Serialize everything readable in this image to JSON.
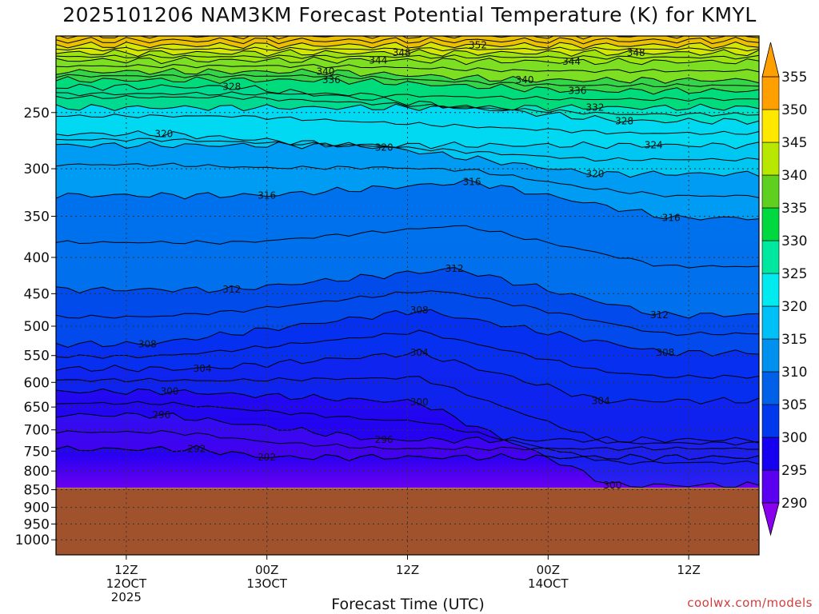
{
  "title": "2025101206 NAM3KM Forecast Potential Temperature (K) for KMYL",
  "watermark": "coolwx.com/models",
  "chart_data": {
    "type": "heatmap",
    "title": "2025101206 NAM3KM Forecast Potential Temperature (K) for KMYL",
    "xlabel": "Forecast Time (UTC)",
    "ylabel": "",
    "y_scale": "log-pressure (reversed)",
    "y_ticks": [
      250,
      300,
      350,
      400,
      450,
      500,
      550,
      600,
      650,
      700,
      750,
      800,
      850,
      900,
      950,
      1000
    ],
    "x_ticks": [
      {
        "hour": 6,
        "lines": [
          "12Z",
          "12OCT",
          "2025"
        ]
      },
      {
        "hour": 18,
        "lines": [
          "00Z",
          "13OCT"
        ]
      },
      {
        "hour": 30,
        "lines": [
          "12Z"
        ]
      },
      {
        "hour": 42,
        "lines": [
          "00Z",
          "14OCT"
        ]
      },
      {
        "hour": 54,
        "lines": [
          "12Z"
        ]
      }
    ],
    "x_range_hours": [
      0,
      60
    ],
    "y_range_hpa": [
      1050,
      195
    ],
    "ground_pressure_hpa": 845,
    "ground_color": "#a0522d",
    "colorbar": {
      "levels": [
        290,
        295,
        300,
        305,
        310,
        315,
        320,
        325,
        330,
        335,
        340,
        345,
        350,
        355
      ],
      "colors": [
        "#8800ee",
        "#5a00f0",
        "#1500f0",
        "#0038ee",
        "#0060e8",
        "#0090ee",
        "#00c0f8",
        "#00eaf0",
        "#00e8a0",
        "#00d840",
        "#60d020",
        "#b8e800",
        "#ffe800",
        "#ffa000"
      ]
    },
    "contour_interval": 4,
    "contour_labels": [
      {
        "value": 292,
        "hour": 12,
        "p": 745
      },
      {
        "value": 292,
        "hour": 18,
        "p": 765
      },
      {
        "value": 296,
        "hour": 9,
        "p": 667
      },
      {
        "value": 296,
        "hour": 28,
        "p": 723
      },
      {
        "value": 300,
        "hour": 9.7,
        "p": 618
      },
      {
        "value": 300,
        "hour": 31,
        "p": 640
      },
      {
        "value": 300,
        "hour": 47.5,
        "p": 838
      },
      {
        "value": 304,
        "hour": 12.5,
        "p": 574
      },
      {
        "value": 304,
        "hour": 31,
        "p": 545
      },
      {
        "value": 304,
        "hour": 46.5,
        "p": 637
      },
      {
        "value": 308,
        "hour": 7.8,
        "p": 530
      },
      {
        "value": 308,
        "hour": 31,
        "p": 475
      },
      {
        "value": 308,
        "hour": 52,
        "p": 545
      },
      {
        "value": 312,
        "hour": 15,
        "p": 444
      },
      {
        "value": 312,
        "hour": 34,
        "p": 415
      },
      {
        "value": 312,
        "hour": 51.5,
        "p": 482
      },
      {
        "value": 316,
        "hour": 18,
        "p": 327
      },
      {
        "value": 316,
        "hour": 35.5,
        "p": 313
      },
      {
        "value": 316,
        "hour": 52.5,
        "p": 352
      },
      {
        "value": 320,
        "hour": 9.2,
        "p": 268
      },
      {
        "value": 320,
        "hour": 28,
        "p": 280
      },
      {
        "value": 320,
        "hour": 46,
        "p": 305
      },
      {
        "value": 324,
        "hour": 51,
        "p": 278
      },
      {
        "value": 328,
        "hour": 15,
        "p": 230
      },
      {
        "value": 328,
        "hour": 48.5,
        "p": 257
      },
      {
        "value": 332,
        "hour": 46,
        "p": 246
      },
      {
        "value": 336,
        "hour": 23.5,
        "p": 225
      },
      {
        "value": 336,
        "hour": 44.5,
        "p": 233
      },
      {
        "value": 340,
        "hour": 23,
        "p": 219
      },
      {
        "value": 340,
        "hour": 40,
        "p": 225
      },
      {
        "value": 344,
        "hour": 27.5,
        "p": 211
      },
      {
        "value": 344,
        "hour": 44,
        "p": 212
      },
      {
        "value": 348,
        "hour": 29.5,
        "p": 206
      },
      {
        "value": 348,
        "hour": 49.5,
        "p": 206
      },
      {
        "value": 352,
        "hour": 36,
        "p": 201
      }
    ]
  }
}
